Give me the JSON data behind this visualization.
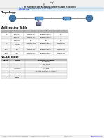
{
  "title_line1": "ing)",
  "title_line2": "y",
  "title_line3": "e Router-on-a-Stick Inter-VLAN Routing",
  "note_text": "Has been updated for use in all VLANs",
  "note_link": "netacad.com",
  "topology_label": "Topology",
  "addressing_table_label": "Addressing Table",
  "vlan_table_label": "VLAN Table",
  "addr_headers": [
    "Device",
    "Interface",
    "IP Address",
    "Subnet Mask",
    "Default Gateway"
  ],
  "addr_rows": [
    [
      "R1",
      "GE0/0.10",
      "192.168.0.1",
      "255.255.255.0",
      "N/A"
    ],
    [
      "",
      "GE0/0.11",
      "192.168.1.1",
      "255.255.255.0",
      "N/A"
    ],
    [
      "",
      "GE0/0.20",
      "N/A",
      "N/A",
      "N/A"
    ],
    [
      "S1",
      "FastE0/1",
      "192.168.0.11",
      "255.255.255.0",
      "192.168.0.1"
    ],
    [
      "S2",
      "FastE0/1",
      "192.168.0.18",
      "255.255.255.0",
      "192.168.0.1"
    ],
    [
      "PC-A",
      "NIC",
      "192.168.0.3",
      "255.255.255.0",
      "192.168.0.1"
    ],
    [
      "PC-B",
      "NIC",
      "192.168.0.5",
      "255.255.255.0",
      "192.168.0.1"
    ]
  ],
  "vlan_headers": [
    "VLAN",
    "Name",
    "Interface Assigned"
  ],
  "vlan_rows": [
    [
      "",
      "",
      "S1: FastE0/1\nS2: FastE0/1\nS1: VLAN"
    ],
    [
      "2",
      "Management",
      "S1: VLAN"
    ],
    [
      "3",
      "Operations",
      "S2: F0/18"
    ],
    [
      "",
      "",
      "S1: F0/6, F0/11-F0/16, GE0/1-2\nS2: F0/3-7, F0/9-14, GE0/1-2"
    ],
    [
      "7",
      "Parking_lot",
      ""
    ],
    [
      "8",
      "Native",
      ""
    ]
  ],
  "footer_left": "© 2013 - 2020 Cisco and/or its affiliates. All rights reserved. Cisco Public",
  "footer_right": "www.netacad.com",
  "footer_page": "Page 1 of 8",
  "bg_color": "#ffffff",
  "table_header_bg": "#b8b8b8",
  "table_border": "#aaaaaa",
  "text_color": "#000000",
  "note_bg": "#d6eaf8",
  "header_gray": "#e8e8e8"
}
